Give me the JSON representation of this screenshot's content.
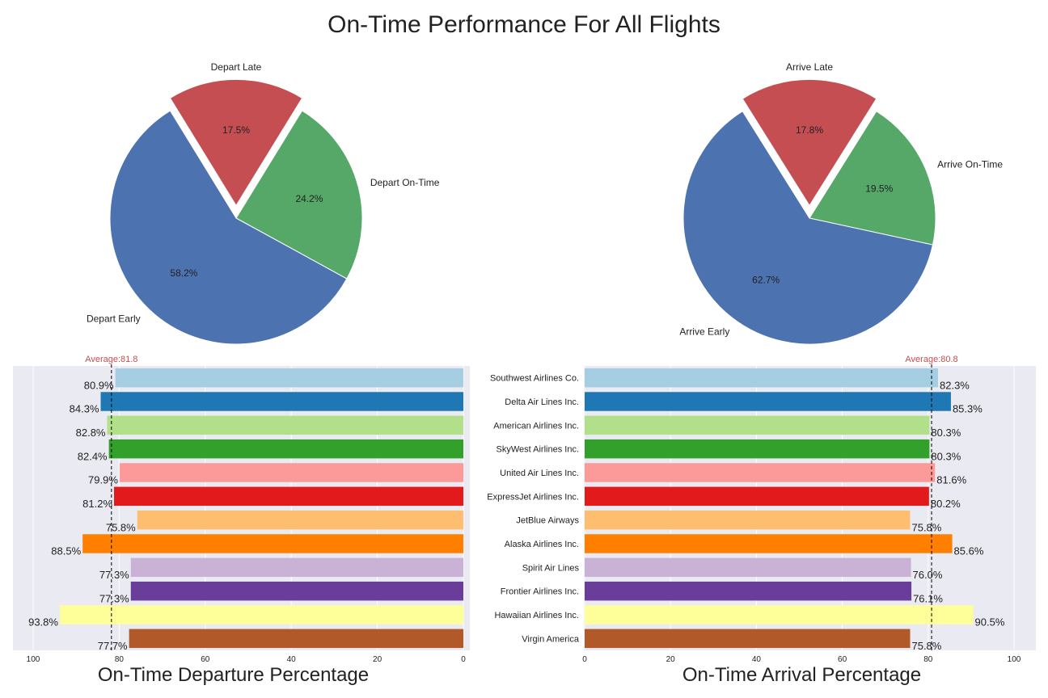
{
  "title": "On-Time Performance For All Flights",
  "colors": {
    "pie_early": "#4c72b0",
    "pie_late": "#c44e52",
    "pie_ontime": "#55a868",
    "avg_line": "#000000",
    "avg_text": "#c44e52",
    "panel_bg": "#eaeaf2"
  },
  "chart_data": [
    {
      "type": "pie",
      "id": "depart-pie",
      "slices": [
        {
          "label": "Depart Early",
          "value": 58.2,
          "pct_label": "58.2%",
          "color": "#4c72b0",
          "explode": false
        },
        {
          "label": "Depart Late",
          "value": 17.5,
          "pct_label": "17.5%",
          "color": "#c44e52",
          "explode": true
        },
        {
          "label": "Depart On-Time",
          "value": 24.2,
          "pct_label": "24.2%",
          "color": "#55a868",
          "explode": false
        }
      ]
    },
    {
      "type": "pie",
      "id": "arrive-pie",
      "slices": [
        {
          "label": "Arrive Early",
          "value": 62.7,
          "pct_label": "62.7%",
          "color": "#4c72b0",
          "explode": false
        },
        {
          "label": "Arrive Late",
          "value": 17.8,
          "pct_label": "17.8%",
          "color": "#c44e52",
          "explode": true
        },
        {
          "label": "Arrive On-Time",
          "value": 19.5,
          "pct_label": "19.5%",
          "color": "#55a868",
          "explode": false
        }
      ]
    },
    {
      "type": "bar",
      "id": "departure-bars",
      "orientation": "horizontal",
      "x_inverted": true,
      "xlabel": "On-Time Departure Percentage",
      "xlim": [
        0,
        100
      ],
      "xticks": [
        "100",
        "80",
        "60",
        "40",
        "20",
        "0"
      ],
      "xtick_values": [
        100,
        80,
        60,
        40,
        20,
        0
      ],
      "average": 81.8,
      "average_label": "Average:81.8",
      "categories": [
        "Southwest Airlines Co.",
        "Delta Air Lines Inc.",
        "American Airlines Inc.",
        "SkyWest Airlines Inc.",
        "United Air Lines Inc.",
        "ExpressJet Airlines Inc.",
        "JetBlue Airways",
        "Alaska Airlines Inc.",
        "Spirit Air Lines",
        "Frontier Airlines Inc.",
        "Hawaiian Airlines Inc.",
        "Virgin America"
      ],
      "values": [
        80.9,
        84.3,
        82.8,
        82.4,
        79.9,
        81.2,
        75.8,
        88.5,
        77.3,
        77.3,
        93.8,
        77.7
      ],
      "value_labels": [
        "80.9%",
        "84.3%",
        "82.8%",
        "82.4%",
        "79.9%",
        "81.2%",
        "75.8%",
        "88.5%",
        "77.3%",
        "77.3%",
        "93.8%",
        "77.7%"
      ]
    },
    {
      "type": "bar",
      "id": "arrival-bars",
      "orientation": "horizontal",
      "x_inverted": false,
      "xlabel": "On-Time Arrival Percentage",
      "xlim": [
        0,
        100
      ],
      "xticks": [
        "0",
        "20",
        "40",
        "60",
        "80",
        "100"
      ],
      "xtick_values": [
        0,
        20,
        40,
        60,
        80,
        100
      ],
      "average": 80.8,
      "average_label": "Average:80.8",
      "categories": [
        "Southwest Airlines Co.",
        "Delta Air Lines Inc.",
        "American Airlines Inc.",
        "SkyWest Airlines Inc.",
        "United Air Lines Inc.",
        "ExpressJet Airlines Inc.",
        "JetBlue Airways",
        "Alaska Airlines Inc.",
        "Spirit Air Lines",
        "Frontier Airlines Inc.",
        "Hawaiian Airlines Inc.",
        "Virgin America"
      ],
      "values": [
        82.3,
        85.3,
        80.3,
        80.3,
        81.6,
        80.2,
        75.8,
        85.6,
        76.0,
        76.1,
        90.5,
        75.8
      ],
      "value_labels": [
        "82.3%",
        "85.3%",
        "80.3%",
        "80.3%",
        "81.6%",
        "80.2%",
        "75.8%",
        "85.6%",
        "76.0%",
        "76.1%",
        "90.5%",
        "75.8%"
      ]
    }
  ],
  "bar_colors": [
    "#a6cee3",
    "#1f78b4",
    "#b2df8a",
    "#33a02c",
    "#fb9a99",
    "#e31a1c",
    "#fdbf6f",
    "#ff7f00",
    "#cab2d6",
    "#6a3d9a",
    "#ffff99",
    "#b15928"
  ]
}
